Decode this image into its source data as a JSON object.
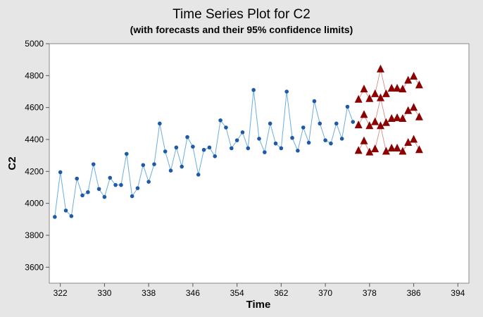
{
  "chart_data": {
    "type": "line",
    "title": "Time Series Plot for C2",
    "subtitle": "(with forecasts and their 95% confidence limits)",
    "xlabel": "Time",
    "ylabel": "C2",
    "xlim": [
      320,
      396
    ],
    "ylim": [
      3500,
      5000
    ],
    "xticks": [
      322,
      330,
      338,
      346,
      354,
      362,
      370,
      378,
      386,
      394
    ],
    "yticks": [
      3600,
      3800,
      4000,
      4200,
      4400,
      4600,
      4800,
      5000
    ],
    "x_tick_labels": [
      "322",
      "330",
      "338",
      "346",
      "354",
      "362",
      "370",
      "378",
      "386",
      "394"
    ],
    "y_tick_labels": [
      "3600",
      "3800",
      "4000",
      "4200",
      "4400",
      "4600",
      "4800",
      "5000"
    ],
    "grid": false,
    "series": [
      {
        "role": "observed",
        "color": "#1f5aa6",
        "marker": "circle",
        "x": [
          321,
          322,
          323,
          324,
          325,
          326,
          327,
          328,
          329,
          330,
          331,
          332,
          333,
          334,
          335,
          336,
          337,
          338,
          339,
          340,
          341,
          342,
          343,
          344,
          345,
          346,
          347,
          348,
          349,
          350,
          351,
          352,
          353,
          354,
          355,
          356,
          357,
          358,
          359,
          360,
          361,
          362,
          363,
          364,
          365,
          366,
          367,
          368,
          369,
          370,
          371,
          372,
          373,
          374,
          375
        ],
        "values": [
          3915,
          4195,
          3955,
          3920,
          4155,
          4050,
          4070,
          4245,
          4090,
          4040,
          4160,
          4115,
          4115,
          4310,
          4045,
          4095,
          4240,
          4135,
          4245,
          4500,
          4325,
          4205,
          4350,
          4230,
          4415,
          4355,
          4180,
          4335,
          4350,
          4295,
          4520,
          4475,
          4345,
          4395,
          4445,
          4345,
          4710,
          4405,
          4320,
          4500,
          4375,
          4345,
          4700,
          4410,
          4330,
          4475,
          4380,
          4640,
          4500,
          4395,
          4375,
          4500,
          4405,
          4605,
          4510
        ]
      },
      {
        "role": "forecast",
        "color": "#8b0000",
        "marker": "triangle",
        "x": [
          376,
          377,
          378,
          379,
          380,
          381,
          382,
          383,
          384,
          385,
          386,
          387
        ],
        "values": [
          4490,
          4555,
          4485,
          4510,
          4660,
          4505,
          4530,
          4535,
          4530,
          4580,
          4600,
          4540
        ]
      },
      {
        "role": "upper",
        "color": "#8b0000",
        "marker": "triangle",
        "x": [
          376,
          377,
          378,
          379,
          380,
          381,
          382,
          383,
          384,
          385,
          386,
          387
        ],
        "values": [
          4650,
          4715,
          4655,
          4685,
          4840,
          4685,
          4720,
          4720,
          4715,
          4770,
          4795,
          4740
        ]
      },
      {
        "role": "lower",
        "color": "#8b0000",
        "marker": "triangle",
        "x": [
          376,
          377,
          378,
          379,
          380,
          381,
          382,
          383,
          384,
          385,
          386,
          387
        ],
        "values": [
          4330,
          4390,
          4320,
          4340,
          4485,
          4325,
          4345,
          4345,
          4325,
          4380,
          4400,
          4335
        ]
      }
    ]
  }
}
